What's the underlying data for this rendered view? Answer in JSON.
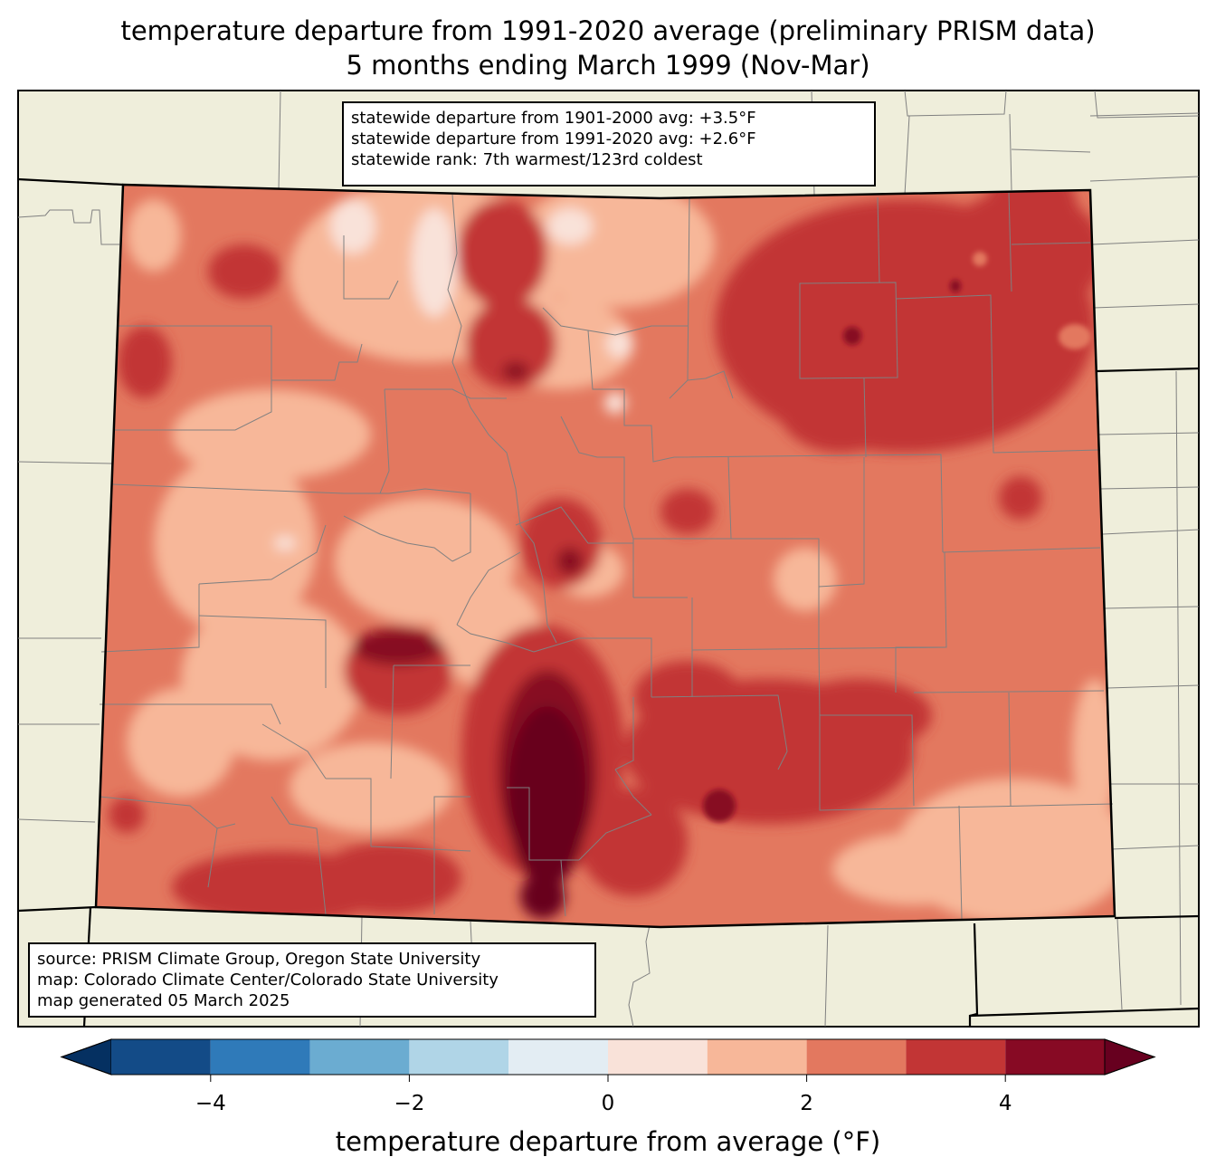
{
  "title": {
    "line1": "temperature departure from 1991-2020 average (preliminary PRISM data)",
    "line2": "5 months ending March 1999 (Nov-Mar)"
  },
  "stats_box": {
    "line1": "statewide departure from 1901-2000 avg: +3.5°F",
    "line2": "statewide departure from 1991-2020 avg: +2.6°F",
    "line3": "statewide rank: 7th warmest/123rd coldest"
  },
  "source_box": {
    "line1": "source: PRISM Climate Group, Oregon State University",
    "line2": "map: Colorado Climate Center/Colorado State University",
    "line3": "map generated 05 March 2025"
  },
  "colorbar": {
    "title": "temperature departure from average (°F)",
    "tick_labels": [
      "−4",
      "−2",
      "0",
      "2",
      "4"
    ],
    "range": [
      -5,
      5
    ],
    "colors": [
      "#134b87",
      "#2f7ab9",
      "#6bacd1",
      "#b0d5e7",
      "#e3edf3",
      "#f9e2d9",
      "#f7b799",
      "#e3785f",
      "#c23535",
      "#870a24"
    ],
    "extend_low_color": "#053061",
    "extend_high_color": "#67001f"
  },
  "map_colors": {
    "background": "#efeedb",
    "county_lines": "#808080"
  }
}
